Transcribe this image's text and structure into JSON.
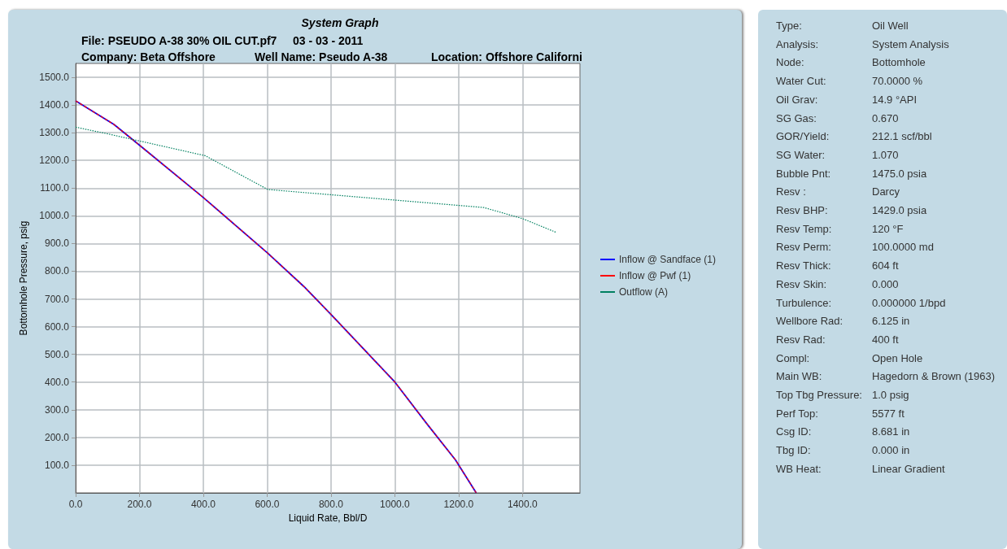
{
  "chart_data": [
    {
      "type": "line",
      "title": "System Graph",
      "annotations": [
        "File: PSEUDO A-38 30% OIL CUT.pf7",
        "03 - 03 - 2011",
        "Company: Beta Offshore",
        "Well Name: Pseudo A-38",
        "Location: Offshore Californi"
      ],
      "xlabel": "Liquid Rate, Bbl/D",
      "ylabel": "Bottomhole Pressure, psig",
      "xlim": [
        0,
        1580
      ],
      "ylim": [
        0,
        1550
      ],
      "xticks": [
        {
          "value": 0,
          "label": "0.0"
        },
        {
          "value": 200,
          "label": "200.0"
        },
        {
          "value": 400,
          "label": "400.0"
        },
        {
          "value": 600,
          "label": "600.0"
        },
        {
          "value": 800,
          "label": "800.0"
        },
        {
          "value": 1000,
          "label": "1000.0"
        },
        {
          "value": 1200,
          "label": "1200.0"
        },
        {
          "value": 1400,
          "label": "1400.0"
        }
      ],
      "yticks": [
        {
          "value": 100,
          "label": "100.0"
        },
        {
          "value": 200,
          "label": "200.0"
        },
        {
          "value": 300,
          "label": "300.0"
        },
        {
          "value": 400,
          "label": "400.0"
        },
        {
          "value": 500,
          "label": "500.0"
        },
        {
          "value": 600,
          "label": "600.0"
        },
        {
          "value": 700,
          "label": "700.0"
        },
        {
          "value": 800,
          "label": "800.0"
        },
        {
          "value": 900,
          "label": "900.0"
        },
        {
          "value": 1000,
          "label": "1000.0"
        },
        {
          "value": 1100,
          "label": "1100.0"
        },
        {
          "value": 1200,
          "label": "1200.0"
        },
        {
          "value": 1300,
          "label": "1300.0"
        },
        {
          "value": 1400,
          "label": "1400.0"
        },
        {
          "value": 1500,
          "label": "1500.0"
        }
      ],
      "grid": true,
      "legend": "right",
      "marker": "none",
      "series": [
        {
          "name": "Inflow @ Sandface (1)",
          "color": "#0000ff",
          "line_style": "solid",
          "x": [
            0,
            120,
            200,
            400,
            600,
            715,
            800,
            1000,
            1100,
            1190,
            1255
          ],
          "values": [
            1415,
            1330,
            1255,
            1066,
            867,
            745,
            644,
            400,
            250,
            119,
            0
          ]
        },
        {
          "name": "Inflow @ Pwf (1)",
          "color": "#ff0000",
          "line_style": "dashed",
          "x": [
            0,
            120,
            200,
            400,
            600,
            715,
            800,
            1000,
            1100,
            1190,
            1255
          ],
          "values": [
            1415,
            1330,
            1255,
            1066,
            867,
            745,
            644,
            400,
            250,
            119,
            0
          ]
        },
        {
          "name": "Outflow (A)",
          "color": "#008060",
          "line_style": "dotted",
          "x": [
            0,
            100,
            406,
            602,
            1279,
            1400,
            1506
          ],
          "values": [
            1320,
            1296,
            1217,
            1095,
            1030,
            990,
            940
          ]
        }
      ]
    },
    {
      "type": "other",
      "annotations": [
        "Type:",
        "Oil Well",
        "Analysis:",
        "System Analysis",
        "Node:",
        "Bottomhole",
        "Water Cut:",
        "70.0000 %",
        "Oil Grav:",
        "14.9 °API",
        "SG Gas:",
        "0.670",
        "GOR/Yield:",
        "212.1 scf/bbl",
        "SG Water:",
        "1.070",
        "Bubble Pnt:",
        "1475.0 psia",
        "Resv :",
        "Darcy",
        "Resv BHP:",
        "1429.0 psia",
        "Resv Temp:",
        "120 °F",
        "Resv Perm:",
        "100.0000 md",
        "Resv Thick:",
        "604 ft",
        "Resv Skin:",
        "0.000",
        "Turbulence:",
        "0.000000 1/bpd",
        "Wellbore Rad:",
        "6.125 in",
        "Resv Rad:",
        "400 ft",
        "Compl:",
        "Open Hole",
        "Main WB:",
        "Hagedorn & Brown (1963)",
        "Top Tbg Pressure:",
        "1.0 psig",
        "Perf Top:",
        "5577 ft",
        "Csg ID:",
        "8.681 in",
        "Tbg ID:",
        "0.000 in",
        "WB Heat:",
        "Linear Gradient"
      ]
    }
  ]
}
